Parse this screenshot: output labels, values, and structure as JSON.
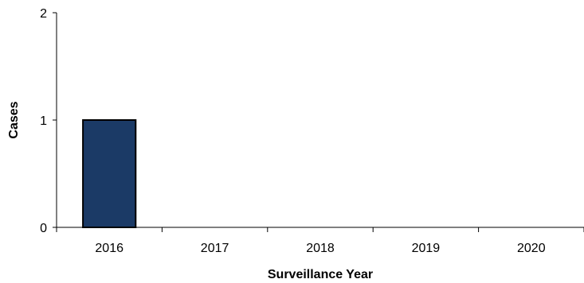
{
  "chart_data": {
    "type": "bar",
    "categories": [
      "2016",
      "2017",
      "2018",
      "2019",
      "2020"
    ],
    "values": [
      1,
      0,
      0,
      0,
      0
    ],
    "xlabel": "Surveillance Year",
    "ylabel": "Cases",
    "ylim": [
      0,
      2
    ],
    "yticks": [
      "0",
      "1",
      "2"
    ],
    "grid": false,
    "legend": "none",
    "bar_color": "#1b3a66",
    "bar_edge_color": "#000000"
  }
}
